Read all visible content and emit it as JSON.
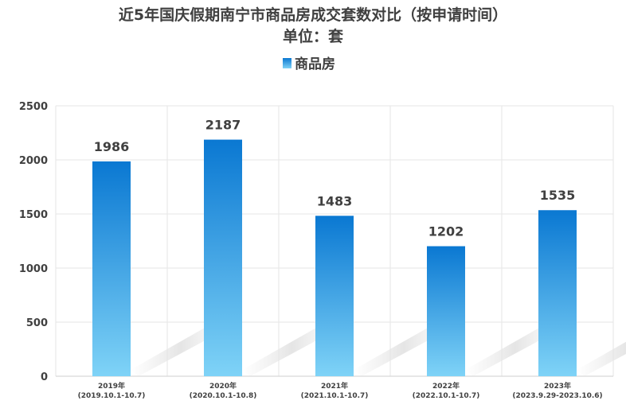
{
  "chart_data": {
    "type": "bar",
    "title": "近5年国庆假期南宁市商品房成交套数对比（按申请时间）",
    "subtitle": "单位：套",
    "legend": {
      "position": "top-center",
      "entries": [
        "商品房"
      ]
    },
    "categories": [
      {
        "year": "2019年",
        "range": "(2019.10.1-10.7)"
      },
      {
        "year": "2020年",
        "range": "(2020.10.1-10.8)"
      },
      {
        "year": "2021年",
        "range": "(2021.10.1-10.7)"
      },
      {
        "year": "2022年",
        "range": "(2022.10.1-10.7)"
      },
      {
        "year": "2023年",
        "range": "(2023.9.29-2023.10.6)"
      }
    ],
    "series": [
      {
        "name": "商品房",
        "values": [
          1986,
          2187,
          1483,
          1202,
          1535
        ]
      }
    ],
    "ylim": [
      0,
      2500
    ],
    "yticks": [
      0,
      500,
      1000,
      1500,
      2000,
      2500
    ],
    "grid": true,
    "colors": {
      "bar_top": "#0a78d2",
      "bar_bottom": "#7fd3f7",
      "text": "#404040",
      "grid": "#e6e6e6"
    }
  }
}
